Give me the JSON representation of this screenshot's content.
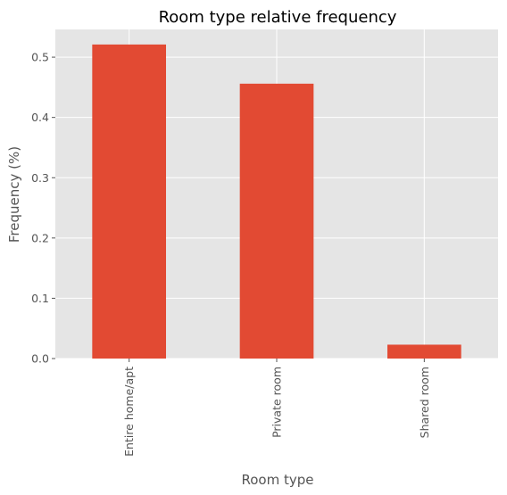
{
  "colors": {
    "background": "#e5e5e5",
    "grid": "#ffffff",
    "bar": "#e24a33",
    "text": "#555555",
    "title": "#000000"
  },
  "chart_data": {
    "type": "bar",
    "title": "Room type relative frequency",
    "xlabel": "Room type",
    "ylabel": "Frequency (%)",
    "categories": [
      "Entire home/apt",
      "Private room",
      "Shared room"
    ],
    "values": [
      0.521,
      0.456,
      0.023
    ],
    "ylim": [
      0,
      0.546
    ],
    "yticks": [
      0.0,
      0.1,
      0.2,
      0.3,
      0.4,
      0.5
    ],
    "ytick_labels": [
      "0.0",
      "0.1",
      "0.2",
      "0.3",
      "0.4",
      "0.5"
    ],
    "grid": true,
    "legend": "none"
  }
}
